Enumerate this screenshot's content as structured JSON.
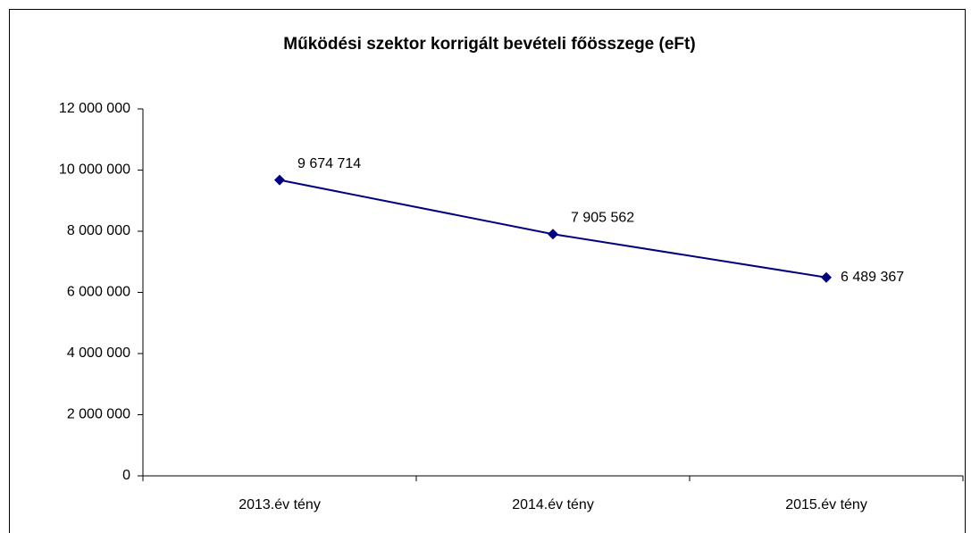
{
  "chart_data": {
    "type": "line",
    "title": "Működési szektor korrigált bevételi főösszege (eFt)",
    "categories": [
      "2013.év tény",
      "2014.év tény",
      "2015.év tény"
    ],
    "series": [
      {
        "name": "Működési szektor korrigált bevételi főösszege",
        "color": "#000080",
        "values": [
          9674714,
          7905562,
          6489367
        ],
        "value_labels": [
          "9 674 714",
          "7 905 562",
          "6 489 367"
        ]
      }
    ],
    "ylim": [
      0,
      12000000
    ],
    "yticks": [
      0,
      {
        "value": 2000000,
        "label": "2 000 000"
      },
      {
        "value": 4000000,
        "label": "4 000 000"
      },
      {
        "value": 6000000,
        "label": "6 000 000"
      },
      {
        "value": 8000000,
        "label": "8 000 000"
      },
      {
        "value": 10000000,
        "label": "10 000 000"
      },
      {
        "value": 12000000,
        "label": "12 000 000"
      }
    ],
    "grid": false
  }
}
